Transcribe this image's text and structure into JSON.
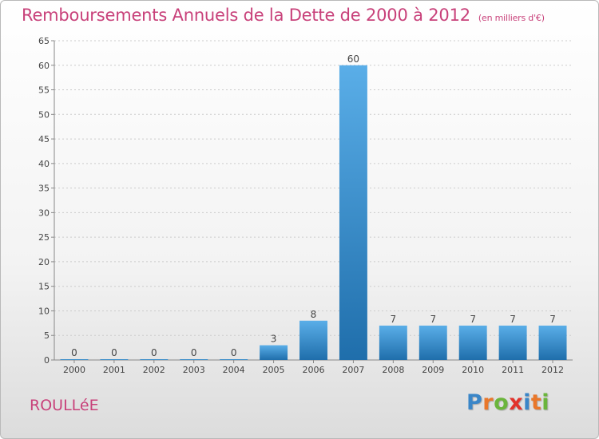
{
  "title": "Remboursements Annuels de la Dette de 2000 à 2012",
  "unit": "(en milliers d'€)",
  "town": "ROULLéE",
  "logo": {
    "letters": [
      "P",
      "r",
      "o",
      "x",
      "i",
      "t",
      "i"
    ],
    "colors": [
      "#3a86c8",
      "#e9772a",
      "#6bb53c",
      "#e2332c",
      "#3a86c8",
      "#e9772a",
      "#6bb53c"
    ]
  },
  "colors": {
    "title": "#c8417a",
    "bar_light": "#5aaee8",
    "bar_dark": "#1f6eab",
    "grid": "#cccccc"
  },
  "chart_data": {
    "type": "bar",
    "categories": [
      "2000",
      "2001",
      "2002",
      "2003",
      "2004",
      "2005",
      "2006",
      "2007",
      "2008",
      "2009",
      "2010",
      "2011",
      "2012"
    ],
    "values": [
      0,
      0,
      0,
      0,
      0,
      3,
      8,
      60,
      7,
      7,
      7,
      7,
      7
    ],
    "ylim": [
      0,
      65
    ],
    "yticks": [
      0,
      5,
      10,
      15,
      20,
      25,
      30,
      35,
      40,
      45,
      50,
      55,
      60,
      65
    ],
    "grid": true
  }
}
